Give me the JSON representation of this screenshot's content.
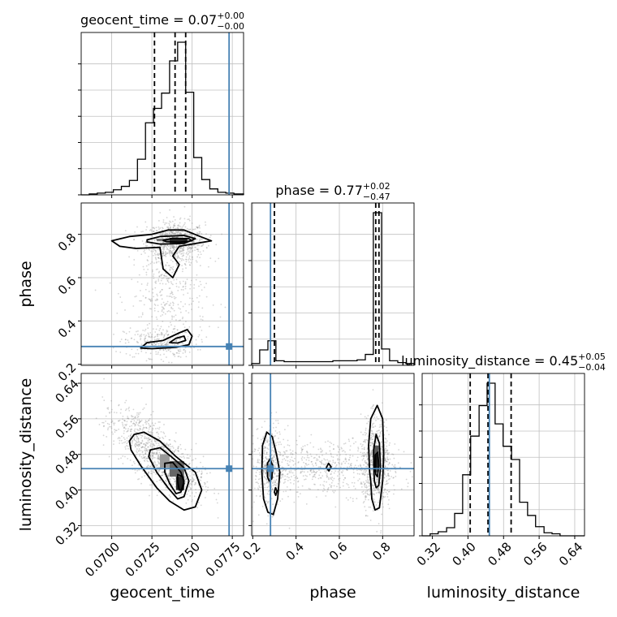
{
  "chart_data": {
    "type": "corner",
    "parameters": [
      "geocent_time",
      "phase",
      "luminosity_distance"
    ],
    "truths": {
      "geocent_time": 0.0773,
      "phase": 0.282,
      "luminosity_distance": 0.448
    },
    "ranges": {
      "geocent_time": [
        0.0681,
        0.0782
      ],
      "phase": [
        0.195,
        0.945
      ],
      "luminosity_distance": [
        0.297,
        0.662
      ]
    },
    "ticks": {
      "geocent_time": [
        "0.0700",
        "0.0725",
        "0.0750",
        "0.0775"
      ],
      "phase": [
        "0.2",
        "0.4",
        "0.6",
        "0.8"
      ],
      "luminosity_distance": [
        "0.32",
        "0.40",
        "0.48",
        "0.56",
        "0.64"
      ]
    },
    "titles": {
      "geocent_time": {
        "name": "geocent_time",
        "median": "0.07",
        "plus": "+0.00",
        "minus": "−0.00"
      },
      "phase": {
        "name": "phase",
        "median": "0.77",
        "plus": "+0.02",
        "minus": "−0.47"
      },
      "luminosity_distance": {
        "name": "luminosity_distance",
        "median": "0.45",
        "plus": "+0.05",
        "minus": "−0.04"
      }
    },
    "quantiles": {
      "geocent_time": [
        0.07266,
        0.07394,
        0.0746
      ],
      "phase": [
        0.3,
        0.768,
        0.783
      ],
      "luminosity_distance": [
        0.405,
        0.445,
        0.497
      ]
    },
    "hist1d": {
      "geocent_time": {
        "edges": [
          0.0681,
          0.0686,
          0.0691,
          0.0696,
          0.0701,
          0.0706,
          0.0711,
          0.0716,
          0.0721,
          0.0726,
          0.0731,
          0.0736,
          0.0741,
          0.0746,
          0.0751,
          0.0756,
          0.0761,
          0.0766,
          0.0771,
          0.0776,
          0.0782
        ],
        "counts": [
          0,
          1,
          2,
          3,
          6,
          10,
          17,
          42,
          85,
          102,
          120,
          158,
          180,
          121,
          44,
          18,
          7,
          3,
          2,
          1
        ]
      },
      "phase": {
        "edges": [
          0.195,
          0.232,
          0.27,
          0.307,
          0.345,
          0.382,
          0.42,
          0.457,
          0.495,
          0.532,
          0.57,
          0.607,
          0.645,
          0.682,
          0.72,
          0.757,
          0.795,
          0.832,
          0.87,
          0.907,
          0.945
        ],
        "counts": [
          2,
          17,
          27,
          5,
          4,
          4,
          4,
          4,
          4,
          4,
          5,
          5,
          5,
          6,
          12,
          168,
          18,
          5,
          3,
          2
        ]
      },
      "luminosity_distance": {
        "edges": [
          0.297,
          0.315,
          0.333,
          0.352,
          0.37,
          0.388,
          0.406,
          0.425,
          0.443,
          0.461,
          0.479,
          0.498,
          0.516,
          0.534,
          0.552,
          0.571,
          0.589,
          0.607,
          0.625,
          0.644,
          0.662
        ],
        "counts": [
          0,
          2,
          4,
          8,
          22,
          60,
          98,
          128,
          150,
          110,
          88,
          75,
          33,
          20,
          9,
          3,
          2,
          0,
          0,
          0
        ]
      }
    },
    "scatter_clusters": {
      "phase_vs_geocent_time": [
        {
          "x": 0.074,
          "y": 0.765,
          "sx": 0.0009,
          "sy": 0.045,
          "n": 700
        },
        {
          "x": 0.073,
          "y": 0.3,
          "sx": 0.0011,
          "sy": 0.035,
          "n": 260
        },
        {
          "x": 0.0735,
          "y": 0.52,
          "sx": 0.0012,
          "sy": 0.14,
          "n": 380
        }
      ],
      "luminosity_distance_vs_geocent_time": [
        {
          "x": 0.0735,
          "y": 0.455,
          "sx": 0.0011,
          "sy": 0.035,
          "n": 700,
          "rho": -0.55
        },
        {
          "x": 0.0715,
          "y": 0.53,
          "sx": 0.001,
          "sy": 0.03,
          "n": 350,
          "rho": -0.3
        }
      ],
      "luminosity_distance_vs_phase": [
        {
          "x": 0.77,
          "y": 0.46,
          "sx": 0.035,
          "sy": 0.05,
          "n": 650
        },
        {
          "x": 0.28,
          "y": 0.45,
          "sx": 0.035,
          "sy": 0.045,
          "n": 420
        },
        {
          "x": 0.55,
          "y": 0.45,
          "sx": 0.16,
          "sy": 0.03,
          "n": 520
        }
      ]
    },
    "contours": {
      "phase_vs_geocent_time": [
        [
          [
            0.07,
            0.77
          ],
          [
            0.0711,
            0.79
          ],
          [
            0.0725,
            0.8
          ],
          [
            0.0735,
            0.82
          ],
          [
            0.0745,
            0.82
          ],
          [
            0.0755,
            0.79
          ],
          [
            0.0762,
            0.77
          ],
          [
            0.075,
            0.755
          ],
          [
            0.0742,
            0.745
          ],
          [
            0.0738,
            0.7
          ],
          [
            0.0742,
            0.66
          ],
          [
            0.0738,
            0.6
          ],
          [
            0.0732,
            0.64
          ],
          [
            0.073,
            0.74
          ],
          [
            0.0715,
            0.735
          ],
          [
            0.0705,
            0.745
          ]
        ],
        [
          [
            0.0722,
            0.775
          ],
          [
            0.073,
            0.79
          ],
          [
            0.0745,
            0.795
          ],
          [
            0.0752,
            0.78
          ],
          [
            0.0745,
            0.758
          ],
          [
            0.073,
            0.755
          ],
          [
            0.0722,
            0.765
          ]
        ],
        [
          [
            0.0732,
            0.772
          ],
          [
            0.0738,
            0.782
          ],
          [
            0.0748,
            0.78
          ],
          [
            0.075,
            0.77
          ],
          [
            0.0742,
            0.764
          ],
          [
            0.0734,
            0.766
          ]
        ],
        [
          [
            0.0718,
            0.275
          ],
          [
            0.0722,
            0.3
          ],
          [
            0.0732,
            0.31
          ],
          [
            0.0742,
            0.345
          ],
          [
            0.0747,
            0.36
          ],
          [
            0.075,
            0.33
          ],
          [
            0.0748,
            0.29
          ],
          [
            0.074,
            0.278
          ],
          [
            0.0725,
            0.272
          ]
        ],
        [
          [
            0.0736,
            0.3
          ],
          [
            0.074,
            0.32
          ],
          [
            0.0745,
            0.33
          ],
          [
            0.0746,
            0.31
          ],
          [
            0.0741,
            0.298
          ]
        ]
      ],
      "luminosity_distance_vs_geocent_time": [
        [
          [
            0.0711,
            0.51
          ],
          [
            0.0714,
            0.525
          ],
          [
            0.072,
            0.53
          ],
          [
            0.073,
            0.51
          ],
          [
            0.074,
            0.475
          ],
          [
            0.0752,
            0.44
          ],
          [
            0.0756,
            0.4
          ],
          [
            0.0752,
            0.362
          ],
          [
            0.0745,
            0.355
          ],
          [
            0.0736,
            0.375
          ],
          [
            0.0728,
            0.405
          ],
          [
            0.0718,
            0.455
          ],
          [
            0.0712,
            0.49
          ]
        ],
        [
          [
            0.0724,
            0.49
          ],
          [
            0.073,
            0.495
          ],
          [
            0.0737,
            0.475
          ],
          [
            0.0745,
            0.45
          ],
          [
            0.0748,
            0.42
          ],
          [
            0.0745,
            0.385
          ],
          [
            0.0741,
            0.38
          ],
          [
            0.0735,
            0.405
          ],
          [
            0.0728,
            0.44
          ],
          [
            0.0723,
            0.475
          ]
        ],
        [
          [
            0.0733,
            0.46
          ],
          [
            0.0738,
            0.462
          ],
          [
            0.0743,
            0.44
          ],
          [
            0.0745,
            0.42
          ],
          [
            0.0743,
            0.395
          ],
          [
            0.074,
            0.392
          ],
          [
            0.0736,
            0.415
          ],
          [
            0.0733,
            0.44
          ]
        ],
        [
          [
            0.0741,
            0.435
          ],
          [
            0.0744,
            0.43
          ],
          [
            0.0745,
            0.415
          ],
          [
            0.0744,
            0.4
          ],
          [
            0.0742,
            0.4
          ],
          [
            0.0741,
            0.42
          ]
        ]
      ],
      "luminosity_distance_vs_phase": [
        [
          [
            0.74,
            0.44
          ],
          [
            0.735,
            0.5
          ],
          [
            0.745,
            0.56
          ],
          [
            0.775,
            0.59
          ],
          [
            0.8,
            0.56
          ],
          [
            0.805,
            0.48
          ],
          [
            0.8,
            0.42
          ],
          [
            0.785,
            0.36
          ],
          [
            0.765,
            0.355
          ],
          [
            0.75,
            0.38
          ],
          [
            0.745,
            0.42
          ]
        ],
        [
          [
            0.76,
            0.44
          ],
          [
            0.758,
            0.49
          ],
          [
            0.77,
            0.525
          ],
          [
            0.785,
            0.505
          ],
          [
            0.79,
            0.45
          ],
          [
            0.782,
            0.41
          ],
          [
            0.77,
            0.405
          ],
          [
            0.762,
            0.42
          ]
        ],
        [
          [
            0.765,
            0.455
          ],
          [
            0.768,
            0.48
          ],
          [
            0.778,
            0.485
          ],
          [
            0.782,
            0.455
          ],
          [
            0.776,
            0.43
          ],
          [
            0.768,
            0.435
          ]
        ],
        [
          [
            0.25,
            0.38
          ],
          [
            0.242,
            0.44
          ],
          [
            0.245,
            0.5
          ],
          [
            0.265,
            0.53
          ],
          [
            0.29,
            0.52
          ],
          [
            0.31,
            0.48
          ],
          [
            0.325,
            0.44
          ],
          [
            0.315,
            0.38
          ],
          [
            0.295,
            0.345
          ],
          [
            0.27,
            0.35
          ]
        ],
        [
          [
            0.268,
            0.43
          ],
          [
            0.268,
            0.46
          ],
          [
            0.28,
            0.47
          ],
          [
            0.292,
            0.455
          ],
          [
            0.288,
            0.425
          ],
          [
            0.276,
            0.42
          ]
        ],
        [
          [
            0.54,
            0.45
          ],
          [
            0.55,
            0.46
          ],
          [
            0.562,
            0.452
          ],
          [
            0.552,
            0.443
          ]
        ],
        [
          [
            0.3,
            0.395
          ],
          [
            0.305,
            0.405
          ],
          [
            0.312,
            0.398
          ],
          [
            0.306,
            0.388
          ]
        ]
      ]
    },
    "density_blocks": {
      "phase_vs_geocent_time": [
        {
          "x0": 0.0736,
          "x1": 0.0747,
          "y0": 0.76,
          "y1": 0.784,
          "shade": 0.85
        },
        {
          "x0": 0.0728,
          "x1": 0.0736,
          "y0": 0.768,
          "y1": 0.78,
          "shade": 0.55
        }
      ],
      "luminosity_distance_vs_geocent_time": [
        {
          "x0": 0.0736,
          "x1": 0.0745,
          "y0": 0.43,
          "y1": 0.465,
          "shade": 0.6
        },
        {
          "x0": 0.074,
          "x1": 0.0745,
          "y0": 0.4,
          "y1": 0.43,
          "shade": 0.85
        },
        {
          "x0": 0.073,
          "x1": 0.0736,
          "y0": 0.45,
          "y1": 0.48,
          "shade": 0.4
        }
      ],
      "luminosity_distance_vs_phase": [
        {
          "x0": 0.757,
          "x1": 0.782,
          "y0": 0.44,
          "y1": 0.5,
          "shade": 0.65
        },
        {
          "x0": 0.762,
          "x1": 0.777,
          "y0": 0.45,
          "y1": 0.48,
          "shade": 0.9
        },
        {
          "x0": 0.268,
          "x1": 0.29,
          "y0": 0.43,
          "y1": 0.46,
          "shade": 0.35
        }
      ]
    },
    "colors": {
      "truth": "#4682b4",
      "line": "#000000",
      "grid": "#c0c0c0",
      "points": "#888888"
    },
    "grid": true
  }
}
